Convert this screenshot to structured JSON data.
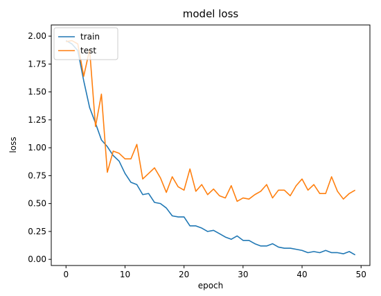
{
  "chart_data": {
    "type": "line",
    "title": "model loss",
    "xlabel": "epoch",
    "ylabel": "loss",
    "xlim": [
      -2.5,
      51.5
    ],
    "ylim": [
      -0.055,
      2.1
    ],
    "x_ticks": [
      0,
      10,
      20,
      30,
      40,
      50
    ],
    "y_ticks": [
      0.0,
      0.25,
      0.5,
      0.75,
      1.0,
      1.25,
      1.5,
      1.75,
      2.0
    ],
    "y_tick_labels": [
      "0.00",
      "0.25",
      "0.50",
      "0.75",
      "1.00",
      "1.25",
      "1.50",
      "1.75",
      "2.00"
    ],
    "grid": false,
    "legend_position": "top-left",
    "x": [
      0,
      1,
      2,
      3,
      4,
      5,
      6,
      7,
      8,
      9,
      10,
      11,
      12,
      13,
      14,
      15,
      16,
      17,
      18,
      19,
      20,
      21,
      22,
      23,
      24,
      25,
      26,
      27,
      28,
      29,
      30,
      31,
      32,
      33,
      34,
      35,
      36,
      37,
      38,
      39,
      40,
      41,
      42,
      43,
      44,
      45,
      46,
      47,
      48,
      49
    ],
    "series": [
      {
        "name": "train",
        "color": "#1f77b4",
        "values": [
          1.96,
          1.93,
          1.87,
          1.6,
          1.36,
          1.22,
          1.07,
          1.01,
          0.93,
          0.88,
          0.77,
          0.69,
          0.67,
          0.58,
          0.59,
          0.51,
          0.5,
          0.46,
          0.39,
          0.38,
          0.38,
          0.3,
          0.3,
          0.28,
          0.25,
          0.26,
          0.23,
          0.2,
          0.18,
          0.21,
          0.17,
          0.17,
          0.14,
          0.12,
          0.12,
          0.14,
          0.11,
          0.1,
          0.1,
          0.09,
          0.08,
          0.06,
          0.07,
          0.06,
          0.08,
          0.06,
          0.06,
          0.05,
          0.07,
          0.04
        ]
      },
      {
        "name": "test",
        "color": "#ff7f0e",
        "values": [
          1.95,
          1.96,
          1.93,
          1.64,
          1.88,
          1.19,
          1.48,
          0.78,
          0.97,
          0.95,
          0.9,
          0.9,
          1.03,
          0.72,
          0.77,
          0.82,
          0.73,
          0.6,
          0.74,
          0.65,
          0.62,
          0.81,
          0.61,
          0.67,
          0.58,
          0.63,
          0.57,
          0.55,
          0.66,
          0.52,
          0.55,
          0.54,
          0.58,
          0.61,
          0.67,
          0.55,
          0.62,
          0.62,
          0.57,
          0.66,
          0.72,
          0.62,
          0.67,
          0.59,
          0.59,
          0.74,
          0.61,
          0.54,
          0.59,
          0.62
        ]
      }
    ]
  }
}
